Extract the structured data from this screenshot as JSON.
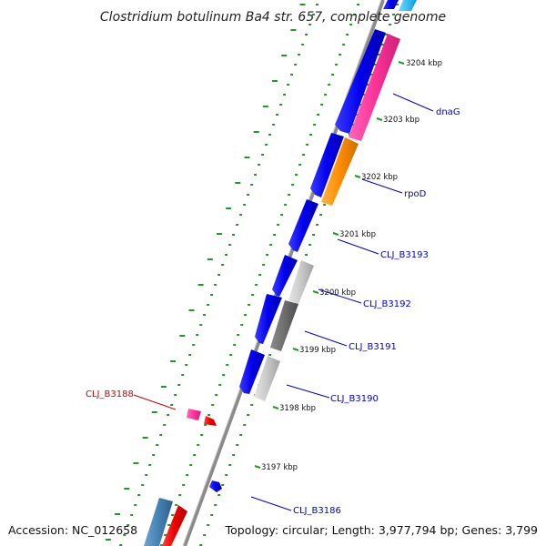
{
  "title": "Clostridium botulinum Ba4 str. 657, complete genome",
  "accession": "Accession: NC_012658",
  "topology": "Topology: circular; Length: 3,977,794 bp; Genes: 3,799",
  "kbp_labels": [
    "3204 kbp",
    "3203 kbp",
    "3202 kbp",
    "3201 kbp",
    "3200 kbp",
    "3199 kbp",
    "3198 kbp",
    "3197 kbp"
  ],
  "gene_labels": [
    {
      "text": "dnaG",
      "color": "#0000cc"
    },
    {
      "text": "rpoD",
      "color": "#0000cc"
    },
    {
      "text": "CLJ_B3193",
      "color": "#0000cc"
    },
    {
      "text": "CLJ_B3192",
      "color": "#0000cc"
    },
    {
      "text": "CLJ_B3191",
      "color": "#0000cc"
    },
    {
      "text": "CLJ_B3190",
      "color": "#0000cc"
    },
    {
      "text": "CLJ_B3188",
      "color": "#cc0000"
    },
    {
      "text": "CLJ_B3186",
      "color": "#0000cc"
    }
  ],
  "colors": {
    "cds_forward": "#0000ee",
    "dnaG": "#ff3399",
    "rpoD": "#ff8c00",
    "gray_light": "#c8c8c8",
    "gray_dark": "#6e6e6e",
    "pink": "#ff3399",
    "red": "#ee0000",
    "steel": "#4682b4",
    "ticks": "#229922",
    "backbone": "#888888"
  }
}
